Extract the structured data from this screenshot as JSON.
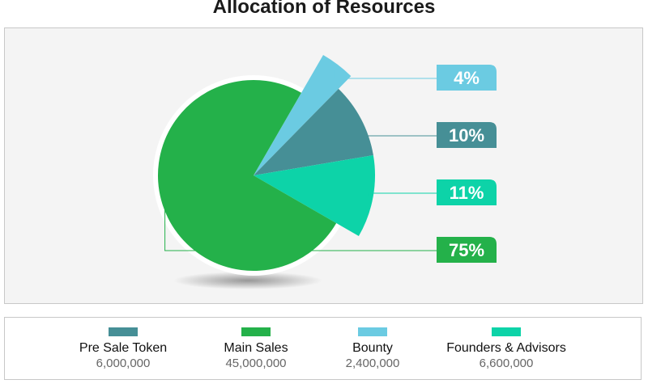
{
  "chart_data": {
    "type": "pie",
    "title": "Allocation of Resources",
    "slices": [
      {
        "name": "Bounty",
        "percent": 4,
        "label": "4%",
        "color": "#6bcbe2"
      },
      {
        "name": "Pre Sale Token",
        "percent": 10,
        "label": "10%",
        "color": "#468f96"
      },
      {
        "name": "Founders & Advisors",
        "percent": 11,
        "label": "11%",
        "color": "#0dd3a8"
      },
      {
        "name": "Main Sales",
        "percent": 75,
        "label": "75%",
        "color": "#24b14a"
      }
    ],
    "legend": [
      {
        "name": "Pre Sale Token",
        "amount": "6,000,000",
        "color": "#468f96"
      },
      {
        "name": "Main Sales",
        "amount": "45,000,000",
        "color": "#24b14a"
      },
      {
        "name": "Bounty",
        "amount": "2,400,000",
        "color": "#6bcbe2"
      },
      {
        "name": "Founders & Advisors",
        "amount": "6,600,000",
        "color": "#0dd3a8"
      }
    ]
  }
}
